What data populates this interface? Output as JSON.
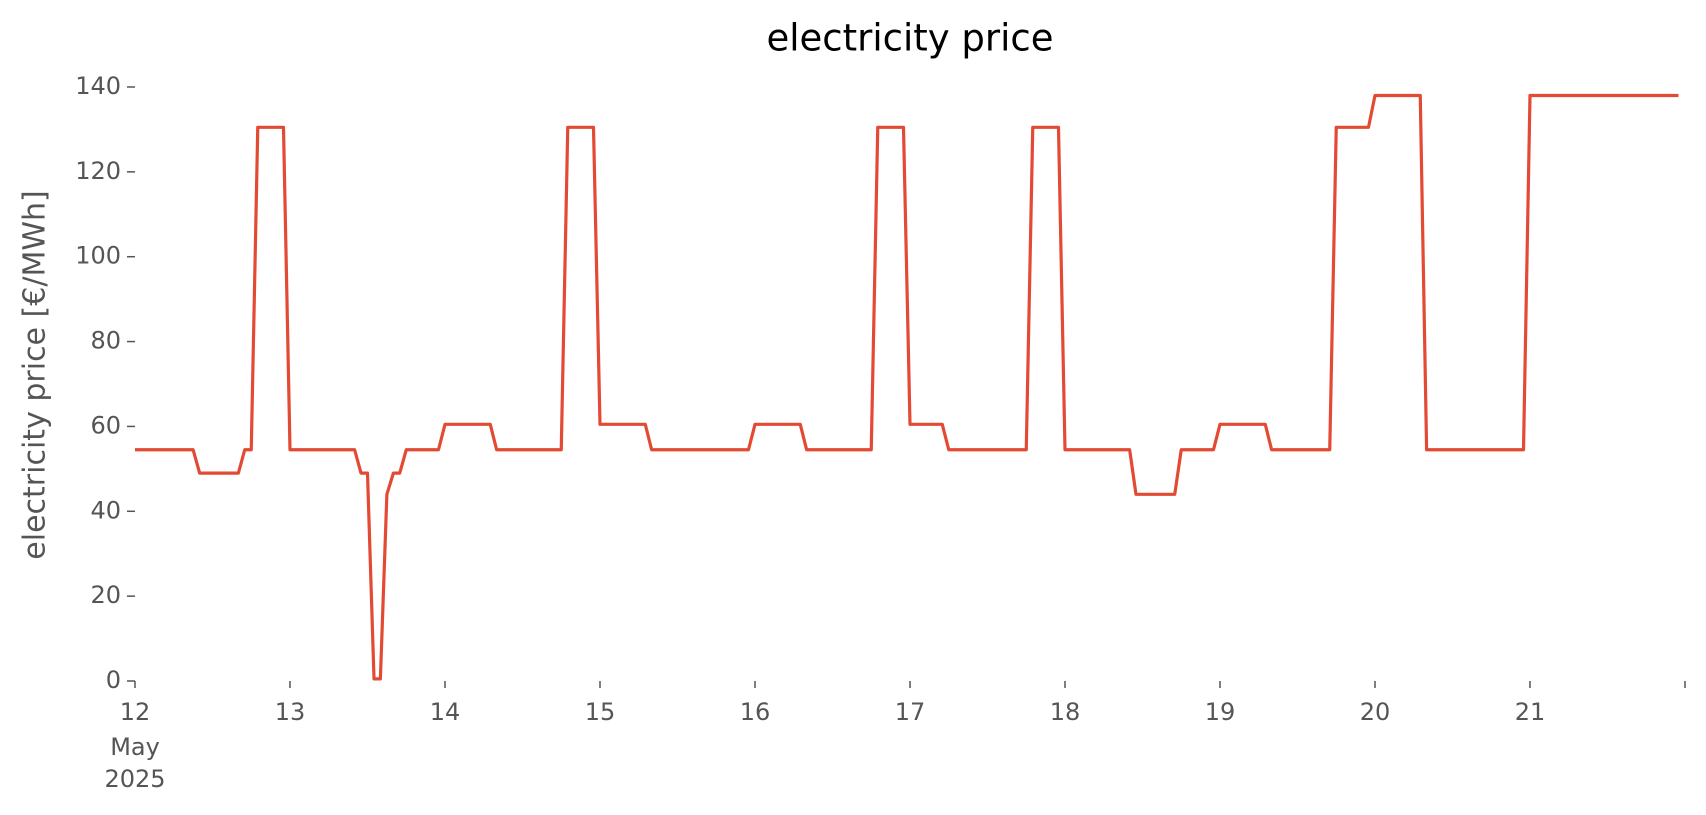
{
  "chart_data": {
    "type": "line",
    "title": "electricity price",
    "ylabel": "electricity price [€/MWh]",
    "x": [
      12,
      12.375,
      12.417,
      12.667,
      12.708,
      12.75,
      12.792,
      12.958,
      13,
      13.417,
      13.458,
      13.5,
      13.542,
      13.583,
      13.625,
      13.667,
      13.708,
      13.75,
      13.958,
      14,
      14.292,
      14.333,
      14.75,
      14.792,
      14.958,
      15,
      15.292,
      15.333,
      15.958,
      16,
      16.292,
      16.333,
      16.75,
      16.792,
      16.958,
      17,
      17.208,
      17.25,
      17.75,
      17.792,
      17.958,
      18,
      18.417,
      18.458,
      18.708,
      18.75,
      18.958,
      19,
      19.292,
      19.333,
      19.708,
      19.75,
      19.958,
      20,
      20.292,
      20.333,
      20.958,
      21,
      21.958
    ],
    "series": [
      {
        "name": "electricity price",
        "color": "#e24a33",
        "values": [
          54.5,
          54.5,
          49,
          49,
          54.5,
          54.5,
          130.5,
          130.5,
          54.5,
          54.5,
          49,
          49,
          0.5,
          0.5,
          44,
          49,
          49,
          54.5,
          54.5,
          60.5,
          60.5,
          54.5,
          54.5,
          130.5,
          130.5,
          60.5,
          60.5,
          54.5,
          54.5,
          60.5,
          60.5,
          54.5,
          54.5,
          130.5,
          130.5,
          60.5,
          60.5,
          54.5,
          54.5,
          130.5,
          130.5,
          54.5,
          54.5,
          44,
          44,
          54.5,
          54.5,
          60.5,
          60.5,
          54.5,
          54.5,
          130.5,
          130.5,
          138,
          138,
          54.5,
          54.5,
          138,
          138
        ]
      }
    ],
    "xlim": [
      12,
      22
    ],
    "xticks": [
      12,
      13,
      14,
      15,
      16,
      17,
      18,
      19,
      20,
      21
    ],
    "x_tick_sublabels": [
      "May",
      "2025"
    ],
    "ylim": [
      0,
      140
    ],
    "yticks": [
      0,
      20,
      40,
      60,
      80,
      100,
      120,
      140
    ],
    "grid": false
  }
}
